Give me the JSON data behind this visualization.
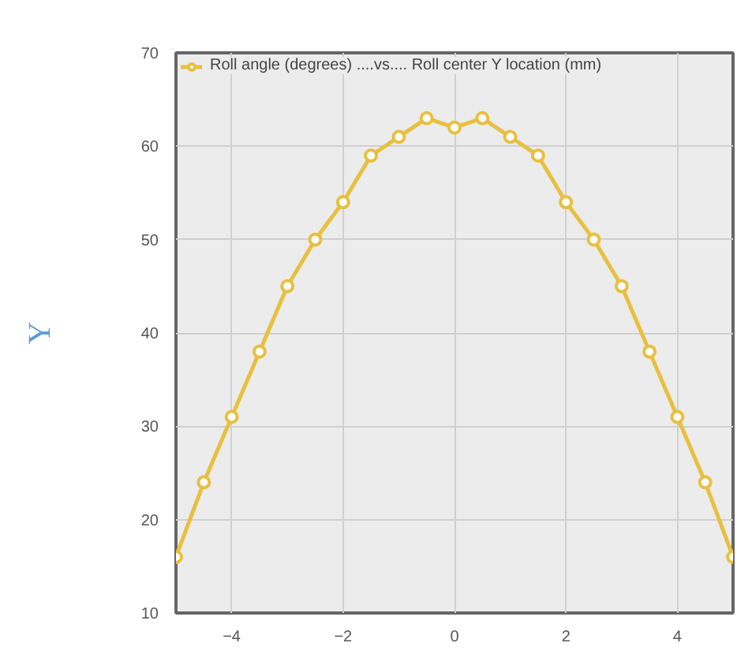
{
  "chart_data": {
    "type": "line",
    "ylabel": "Y",
    "x": [
      -5,
      -4.5,
      -4,
      -3.5,
      -3,
      -2.5,
      -2,
      -1.5,
      -1,
      -0.5,
      0,
      0.5,
      1,
      1.5,
      2,
      2.5,
      3,
      3.5,
      4,
      4.5,
      5
    ],
    "series": [
      {
        "name": "Roll angle (degrees) ....vs.... Roll center Y location (mm)",
        "color": "#e8c040",
        "values": [
          16,
          24,
          31,
          38,
          45,
          50,
          54,
          59,
          61,
          63,
          62,
          63,
          61,
          59,
          54,
          50,
          45,
          38,
          31,
          24,
          16
        ]
      }
    ],
    "xlim": [
      -5,
      5
    ],
    "xticks": [
      -4,
      -2,
      0,
      2,
      4
    ],
    "ylim": [
      10,
      70
    ],
    "yticks": [
      10,
      20,
      30,
      40,
      50,
      60,
      70
    ],
    "grid": true,
    "legend": "top left",
    "marker": "circle",
    "line_style": "solid"
  }
}
